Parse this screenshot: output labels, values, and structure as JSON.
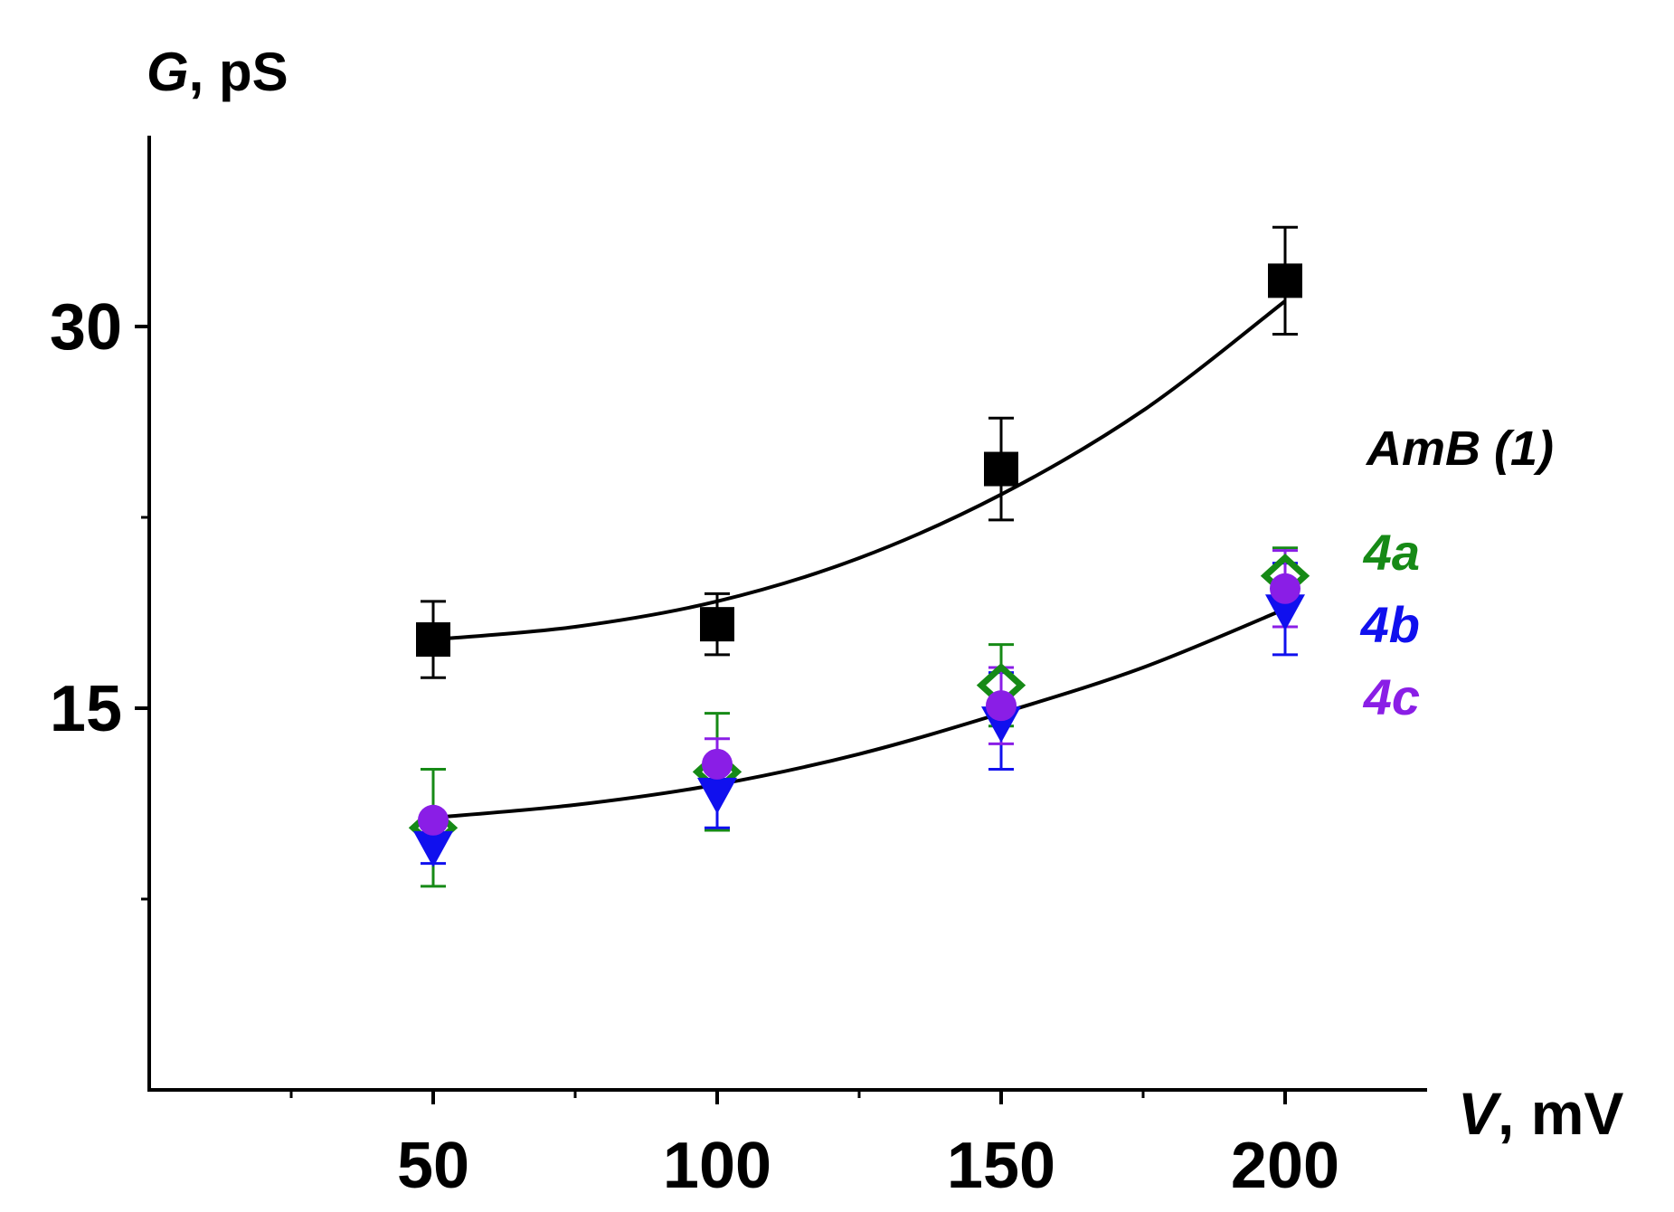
{
  "chart_data": {
    "type": "scatter",
    "title": "",
    "ylabel": {
      "symbol": "G",
      "unit": ", pS"
    },
    "xlabel": {
      "symbol": "V",
      "unit": ", mV"
    },
    "xlim": [
      0,
      225
    ],
    "ylim": [
      0,
      37.5
    ],
    "x_ticks_major": [
      50,
      100,
      150,
      200
    ],
    "x_ticks_minor": [
      25,
      75,
      125,
      175
    ],
    "y_ticks_major": [
      15,
      30
    ],
    "y_ticks_minor": [
      7.5,
      22.5
    ],
    "grid": false,
    "legend_placement": "right",
    "series": [
      {
        "name": "AmB (1)",
        "color": "#000000",
        "marker": "square",
        "x": [
          50,
          100,
          150,
          200
        ],
        "y": [
          17.7,
          18.3,
          24.4,
          31.8
        ],
        "err": [
          1.5,
          1.2,
          2.0,
          2.1
        ]
      },
      {
        "name": "4a",
        "color": "#168a16",
        "marker": "diamond",
        "x": [
          50,
          100,
          150,
          200
        ],
        "y": [
          10.3,
          12.5,
          15.9,
          20.2
        ],
        "err": [
          2.3,
          2.3,
          1.6,
          1.1
        ]
      },
      {
        "name": "4b",
        "color": "#1010ee",
        "marker": "triangle-down",
        "x": [
          50,
          100,
          150,
          200
        ],
        "y": [
          9.6,
          11.7,
          14.5,
          18.9
        ],
        "err": [
          0.7,
          1.4,
          1.9,
          1.8
        ]
      },
      {
        "name": "4c",
        "color": "#8a1ee6",
        "marker": "circle",
        "x": [
          50,
          100,
          150,
          200
        ],
        "y": [
          10.6,
          12.8,
          15.1,
          19.7
        ],
        "err": [
          0.0,
          1.0,
          1.5,
          1.5
        ]
      }
    ],
    "fit_curves": [
      {
        "name": "AmB (1) fit",
        "color": "#000000",
        "x": [
          50,
          75,
          100,
          125,
          150,
          175,
          200
        ],
        "y": [
          17.7,
          18.2,
          19.2,
          20.9,
          23.4,
          26.7,
          31.0
        ]
      },
      {
        "name": "4a-4c fit",
        "color": "#000000",
        "x": [
          50,
          75,
          100,
          125,
          150,
          175,
          200
        ],
        "y": [
          10.7,
          11.2,
          12.0,
          13.2,
          14.8,
          16.6,
          18.9
        ]
      }
    ]
  }
}
